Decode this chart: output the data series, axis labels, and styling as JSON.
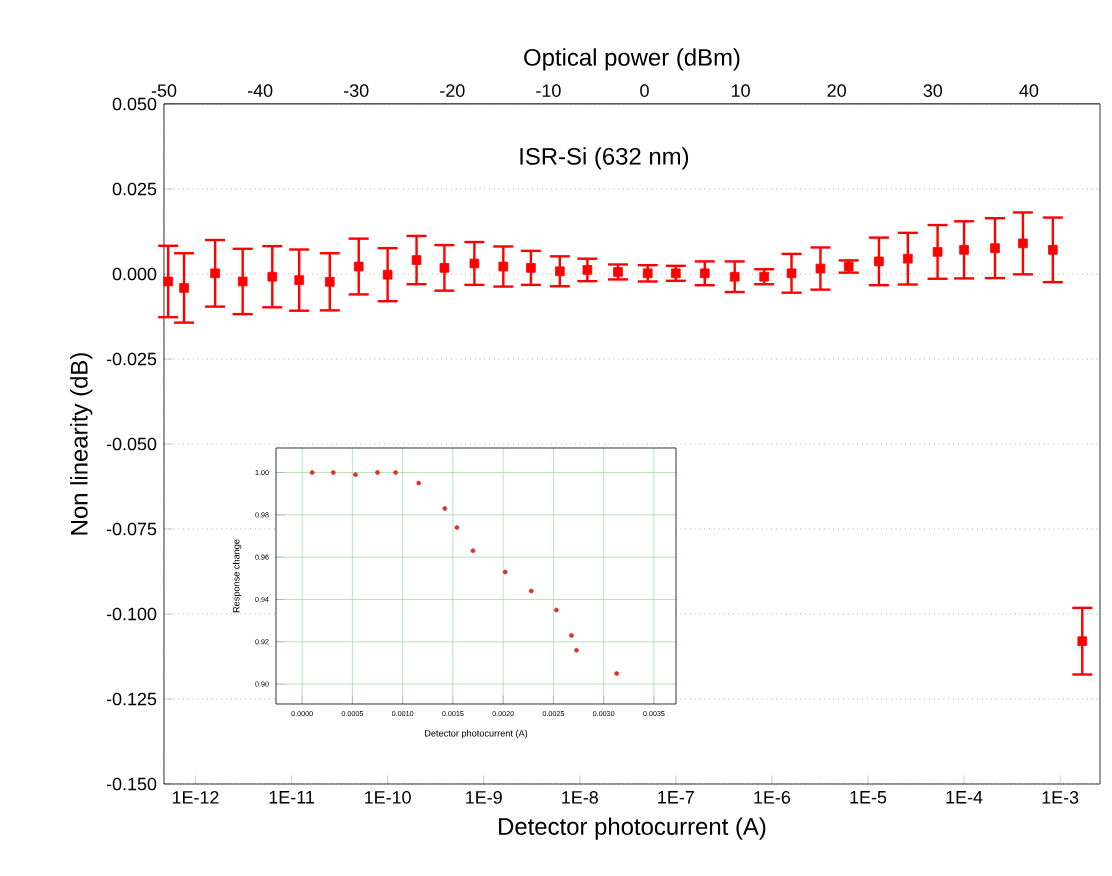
{
  "chart_data": [
    {
      "type": "scatter",
      "xlabel": "Detector photocurrent (A)",
      "ylabel": "Non linearity (dB)",
      "x2label": "Optical power (dBm)",
      "annotations": [
        "ISR-Si (632 nm)"
      ],
      "x": [
        5.2e-13,
        7.6e-13,
        1.6e-12,
        3.1e-12,
        6.3e-12,
        1.2e-11,
        2.5e-11,
        5e-11,
        1e-10,
        2e-10,
        3.9e-10,
        8e-10,
        1.6e-09,
        3.1e-09,
        6.2e-09,
        1.2e-08,
        2.5e-08,
        5.1e-08,
        1e-07,
        2e-07,
        4.1e-07,
        8.3e-07,
        1.6e-06,
        3.2e-06,
        6.3e-06,
        1.3e-05,
        2.6e-05,
        5.3e-05,
        0.0001,
        0.00021,
        0.00041,
        0.00084,
        0.0017
      ],
      "values": [
        -0.0022,
        -0.0041,
        0.0002,
        -0.0022,
        -0.0008,
        -0.0018,
        -0.0023,
        0.0022,
        -0.0002,
        0.0041,
        0.0018,
        0.0031,
        0.0022,
        0.0018,
        0.0008,
        0.0012,
        0.0006,
        0.0002,
        0.0002,
        0.0002,
        -0.0008,
        -0.0008,
        0.0002,
        0.0016,
        0.0022,
        0.0037,
        0.0045,
        0.0065,
        0.0071,
        0.0076,
        0.009,
        0.0071,
        -0.108
      ],
      "errors": [
        0.0105,
        0.0102,
        0.0098,
        0.0096,
        0.009,
        0.009,
        0.0084,
        0.0082,
        0.0078,
        0.0071,
        0.0067,
        0.0063,
        0.0059,
        0.005,
        0.0044,
        0.0033,
        0.0022,
        0.0024,
        0.0022,
        0.0035,
        0.0045,
        0.0022,
        0.0057,
        0.0062,
        0.0018,
        0.007,
        0.0076,
        0.0079,
        0.0084,
        0.0088,
        0.0091,
        0.0095,
        0.0098
      ],
      "color": "#ff0000",
      "marker": "square",
      "log": "x",
      "grid": true,
      "xlim": [
        4.7e-13,
        0.0026
      ],
      "xticks": [
        {
          "value": 1e-12,
          "label": "1E-12"
        },
        {
          "value": 1e-11,
          "label": "1E-11"
        },
        {
          "value": 1e-10,
          "label": "1E-10"
        },
        {
          "value": 1e-09,
          "label": "1E-9"
        },
        {
          "value": 1e-08,
          "label": "1E-8"
        },
        {
          "value": 1e-07,
          "label": "1E-7"
        },
        {
          "value": 1e-06,
          "label": "1E-6"
        },
        {
          "value": 1e-05,
          "label": "1E-5"
        },
        {
          "value": 0.0001,
          "label": "1E-4"
        },
        {
          "value": 0.001,
          "label": "1E-3"
        }
      ],
      "x2lim": [
        -50,
        47.4
      ],
      "x2ticks": [
        -50,
        -40,
        -30,
        -20,
        -10,
        0,
        10,
        20,
        30,
        40
      ],
      "ylim": [
        -0.15,
        0.05
      ],
      "yticks": [
        {
          "value": 0.05,
          "label": "0.050"
        },
        {
          "value": 0.025,
          "label": "0.025"
        },
        {
          "value": 0,
          "label": "0.000"
        },
        {
          "value": -0.025,
          "label": "-0.025"
        },
        {
          "value": -0.05,
          "label": "-0.050"
        },
        {
          "value": -0.075,
          "label": "-0.075"
        },
        {
          "value": -0.1,
          "label": "-0.100"
        },
        {
          "value": -0.125,
          "label": "-0.125"
        },
        {
          "value": -0.15,
          "label": "-0.150"
        }
      ]
    },
    {
      "type": "scatter",
      "xlabel": "Detector photocurrent (A)",
      "ylabel": "Response change",
      "x": [
        0.0001,
        0.00031,
        0.00053,
        0.00075,
        0.00093,
        0.00116,
        0.00142,
        0.00154,
        0.0017,
        0.00202,
        0.00228,
        0.00253,
        0.00268,
        0.00273,
        0.00313
      ],
      "values": [
        1.0,
        1.0,
        0.999,
        1.0,
        1.0,
        0.995,
        0.983,
        0.974,
        0.963,
        0.953,
        0.944,
        0.935,
        0.923,
        0.916,
        0.905
      ],
      "color": "#e03030",
      "marker": "circle",
      "grid": true,
      "xlim": [
        -0.00026,
        0.00372
      ],
      "xticks": [
        {
          "value": 0,
          "label": "0.0000"
        },
        {
          "value": 0.0005,
          "label": "0.0005"
        },
        {
          "value": 0.001,
          "label": "0.0010"
        },
        {
          "value": 0.0015,
          "label": "0.0015"
        },
        {
          "value": 0.002,
          "label": "0.0020"
        },
        {
          "value": 0.0025,
          "label": "0.0025"
        },
        {
          "value": 0.003,
          "label": "0.0030"
        },
        {
          "value": 0.0035,
          "label": "0.0035"
        }
      ],
      "ylim": [
        0.8906,
        1.0116
      ],
      "yticks": [
        {
          "value": 0.9,
          "label": "0.90"
        },
        {
          "value": 0.92,
          "label": "0.92"
        },
        {
          "value": 0.94,
          "label": "0.94"
        },
        {
          "value": 0.96,
          "label": "0.96"
        },
        {
          "value": 0.98,
          "label": "0.98"
        },
        {
          "value": 1.0,
          "label": "1.00"
        }
      ]
    }
  ]
}
